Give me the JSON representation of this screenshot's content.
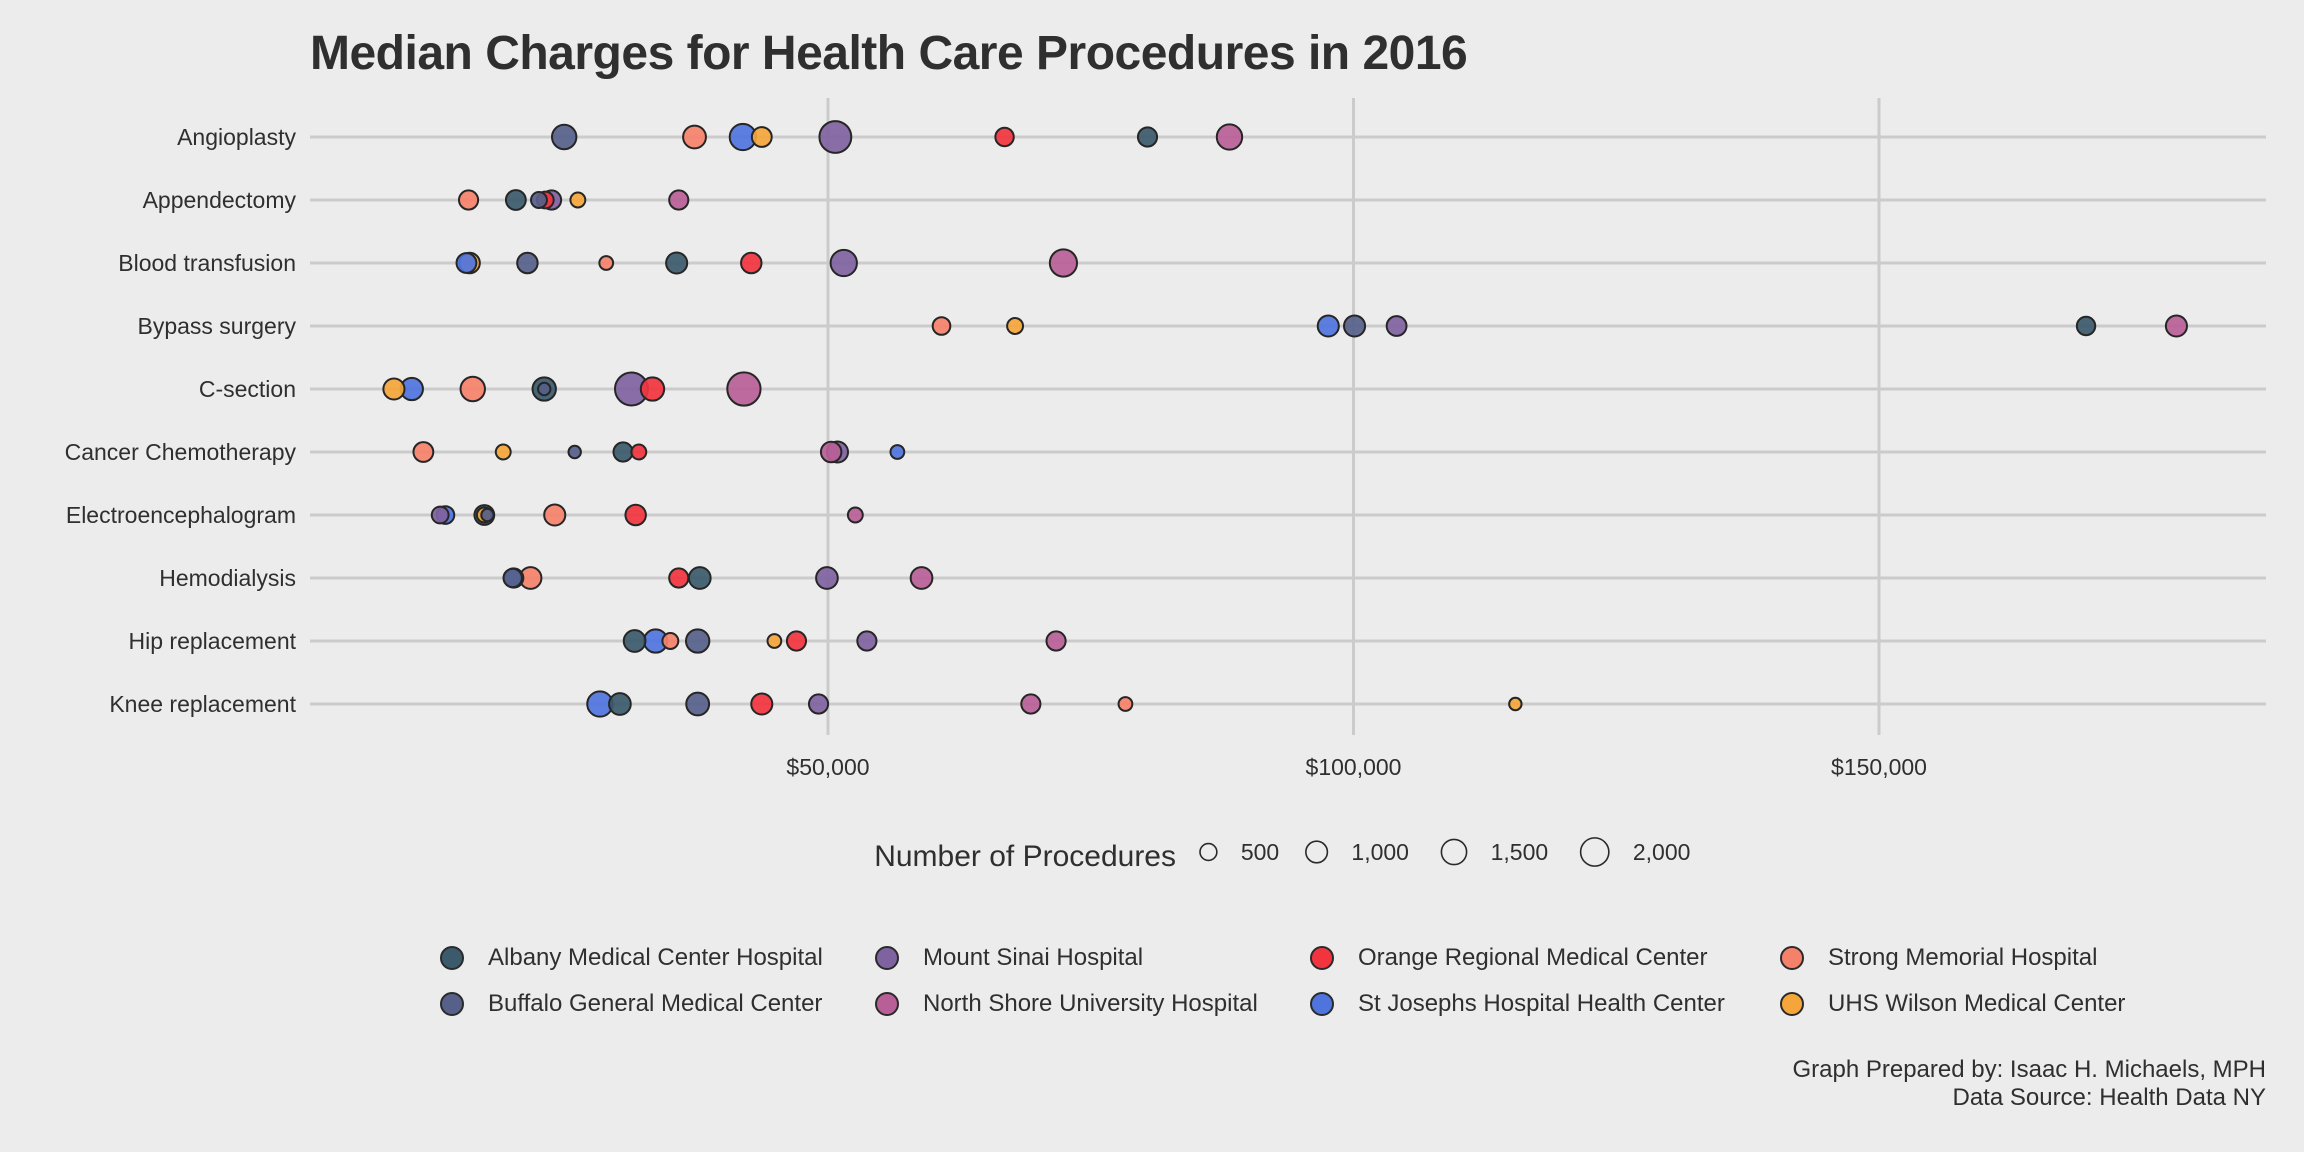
{
  "chart_data": {
    "type": "scatter",
    "title": "Median Charges for Health Care Procedures in 2016",
    "xlabel": "",
    "ylabel": "",
    "xlim": [
      0,
      186000
    ],
    "x_ticks": [
      50000,
      100000,
      150000
    ],
    "x_tick_labels": [
      "$50,000",
      "$100,000",
      "$150,000"
    ],
    "grid": true,
    "categories": [
      "Angioplasty",
      "Appendectomy",
      "Blood transfusion",
      "Bypass surgery",
      "C-section",
      "Cancer Chemotherapy",
      "Electroencephalogram",
      "Hemodialysis",
      "Hip replacement",
      "Knee replacement"
    ],
    "size_legend": {
      "title": "Number of Procedures",
      "values": [
        500,
        1000,
        1500,
        2000
      ],
      "labels": [
        "500",
        "1,000",
        "1,500",
        "2,000"
      ]
    },
    "legend_placement": "bottom",
    "hospitals": [
      {
        "name": "Albany Medical Center Hospital",
        "color": "#3b5a6b"
      },
      {
        "name": "Buffalo General Medical Center",
        "color": "#566089"
      },
      {
        "name": "Mount Sinai Hospital",
        "color": "#7f62a0"
      },
      {
        "name": "North Shore University Hospital",
        "color": "#b95f97"
      },
      {
        "name": "Orange Regional Medical Center",
        "color": "#f2343e"
      },
      {
        "name": "St Josephs Hospital Health Center",
        "color": "#4f74de"
      },
      {
        "name": "Strong Memorial Hospital",
        "color": "#f5816a"
      },
      {
        "name": "UHS Wilson Medical Center",
        "color": "#f5a63a"
      }
    ],
    "legend_order": [
      0,
      2,
      4,
      6,
      1,
      3,
      5,
      7
    ],
    "series": [
      {
        "category": "Angioplasty",
        "points": [
          {
            "hospital": 1,
            "charge": 24900,
            "count": 900
          },
          {
            "hospital": 6,
            "charge": 37300,
            "count": 750
          },
          {
            "hospital": 5,
            "charge": 41900,
            "count": 1100
          },
          {
            "hospital": 7,
            "charge": 43700,
            "count": 500
          },
          {
            "hospital": 2,
            "charge": 50700,
            "count": 1800
          },
          {
            "hospital": 4,
            "charge": 66800,
            "count": 400
          },
          {
            "hospital": 0,
            "charge": 80400,
            "count": 450
          },
          {
            "hospital": 3,
            "charge": 88200,
            "count": 1000
          }
        ]
      },
      {
        "category": "Appendectomy",
        "points": [
          {
            "hospital": 6,
            "charge": 15800,
            "count": 450
          },
          {
            "hospital": 0,
            "charge": 20300,
            "count": 500
          },
          {
            "hospital": 1,
            "charge": 22500,
            "count": 250
          },
          {
            "hospital": 4,
            "charge": 23100,
            "count": 300
          },
          {
            "hospital": 2,
            "charge": 23700,
            "count": 450
          },
          {
            "hospital": 7,
            "charge": 26200,
            "count": 200
          },
          {
            "hospital": 3,
            "charge": 35800,
            "count": 450
          }
        ]
      },
      {
        "category": "Blood transfusion",
        "points": [
          {
            "hospital": 5,
            "charge": 15600,
            "count": 500
          },
          {
            "hospital": 7,
            "charge": 15900,
            "count": 550
          },
          {
            "hospital": 1,
            "charge": 21400,
            "count": 550
          },
          {
            "hospital": 6,
            "charge": 28900,
            "count": 150
          },
          {
            "hospital": 0,
            "charge": 35600,
            "count": 600
          },
          {
            "hospital": 4,
            "charge": 42700,
            "count": 550
          },
          {
            "hospital": 2,
            "charge": 51500,
            "count": 1100
          },
          {
            "hospital": 3,
            "charge": 72400,
            "count": 1200
          }
        ]
      },
      {
        "category": "Bypass surgery",
        "points": [
          {
            "hospital": 6,
            "charge": 60800,
            "count": 350
          },
          {
            "hospital": 7,
            "charge": 67800,
            "count": 250
          },
          {
            "hospital": 5,
            "charge": 97600,
            "count": 600
          },
          {
            "hospital": 1,
            "charge": 100100,
            "count": 600
          },
          {
            "hospital": 2,
            "charge": 104100,
            "count": 500
          },
          {
            "hospital": 0,
            "charge": 169700,
            "count": 400
          },
          {
            "hospital": 3,
            "charge": 178300,
            "count": 600
          }
        ]
      },
      {
        "category": "C-section",
        "points": [
          {
            "hospital": 7,
            "charge": 8700,
            "count": 600
          },
          {
            "hospital": 5,
            "charge": 10400,
            "count": 700
          },
          {
            "hospital": 6,
            "charge": 16200,
            "count": 900
          },
          {
            "hospital": 0,
            "charge": 23000,
            "count": 800
          },
          {
            "hospital": 1,
            "charge": 23000,
            "count": 100
          },
          {
            "hospital": 2,
            "charge": 31300,
            "count": 1950
          },
          {
            "hospital": 4,
            "charge": 33300,
            "count": 800
          },
          {
            "hospital": 3,
            "charge": 42000,
            "count": 2000
          }
        ]
      },
      {
        "category": "Cancer Chemotherapy",
        "points": [
          {
            "hospital": 6,
            "charge": 11500,
            "count": 500
          },
          {
            "hospital": 7,
            "charge": 19100,
            "count": 200
          },
          {
            "hospital": 1,
            "charge": 25900,
            "count": 100
          },
          {
            "hospital": 0,
            "charge": 30500,
            "count": 450
          },
          {
            "hospital": 4,
            "charge": 32000,
            "count": 200
          },
          {
            "hospital": 3,
            "charge": 50300,
            "count": 550
          },
          {
            "hospital": 2,
            "charge": 50900,
            "count": 600
          },
          {
            "hospital": 5,
            "charge": 56600,
            "count": 150
          }
        ]
      },
      {
        "category": "Electroencephalogram",
        "points": [
          {
            "hospital": 2,
            "charge": 13100,
            "count": 300
          },
          {
            "hospital": 5,
            "charge": 13600,
            "count": 350
          },
          {
            "hospital": 0,
            "charge": 17300,
            "count": 500
          },
          {
            "hospital": 7,
            "charge": 17300,
            "count": 200
          },
          {
            "hospital": 1,
            "charge": 17600,
            "count": 100
          },
          {
            "hospital": 6,
            "charge": 24000,
            "count": 600
          },
          {
            "hospital": 4,
            "charge": 31700,
            "count": 550
          },
          {
            "hospital": 3,
            "charge": 52600,
            "count": 200
          }
        ]
      },
      {
        "category": "Hemodialysis",
        "points": [
          {
            "hospital": 1,
            "charge": 20000,
            "count": 400
          },
          {
            "hospital": 5,
            "charge": 20100,
            "count": 450
          },
          {
            "hospital": 6,
            "charge": 21700,
            "count": 650
          },
          {
            "hospital": 4,
            "charge": 35800,
            "count": 450
          },
          {
            "hospital": 0,
            "charge": 37800,
            "count": 650
          },
          {
            "hospital": 2,
            "charge": 49900,
            "count": 650
          },
          {
            "hospital": 3,
            "charge": 58900,
            "count": 650
          }
        ]
      },
      {
        "category": "Hip replacement",
        "points": [
          {
            "hospital": 0,
            "charge": 31600,
            "count": 650
          },
          {
            "hospital": 5,
            "charge": 33600,
            "count": 800
          },
          {
            "hospital": 6,
            "charge": 35000,
            "count": 250
          },
          {
            "hospital": 1,
            "charge": 37600,
            "count": 800
          },
          {
            "hospital": 7,
            "charge": 44900,
            "count": 150
          },
          {
            "hospital": 4,
            "charge": 47000,
            "count": 450
          },
          {
            "hospital": 2,
            "charge": 53700,
            "count": 450
          },
          {
            "hospital": 3,
            "charge": 71700,
            "count": 450
          }
        ]
      },
      {
        "category": "Knee replacement",
        "points": [
          {
            "hospital": 5,
            "charge": 28300,
            "count": 1000
          },
          {
            "hospital": 0,
            "charge": 30200,
            "count": 650
          },
          {
            "hospital": 1,
            "charge": 37600,
            "count": 750
          },
          {
            "hospital": 4,
            "charge": 43700,
            "count": 600
          },
          {
            "hospital": 2,
            "charge": 49100,
            "count": 450
          },
          {
            "hospital": 3,
            "charge": 69300,
            "count": 450
          },
          {
            "hospital": 6,
            "charge": 78300,
            "count": 150
          },
          {
            "hospital": 7,
            "charge": 115400,
            "count": 100
          }
        ]
      }
    ]
  },
  "caption": {
    "line1": "Graph Prepared by: Isaac H. Michaels, MPH",
    "line2": "Data Source: Health Data NY"
  }
}
